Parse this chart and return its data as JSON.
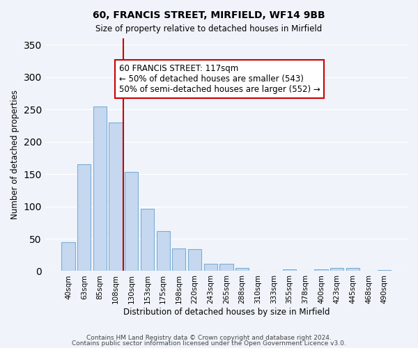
{
  "title": "60, FRANCIS STREET, MIRFIELD, WF14 9BB",
  "subtitle": "Size of property relative to detached houses in Mirfield",
  "xlabel": "Distribution of detached houses by size in Mirfield",
  "ylabel": "Number of detached properties",
  "categories": [
    "40sqm",
    "63sqm",
    "85sqm",
    "108sqm",
    "130sqm",
    "153sqm",
    "175sqm",
    "198sqm",
    "220sqm",
    "243sqm",
    "265sqm",
    "288sqm",
    "310sqm",
    "333sqm",
    "355sqm",
    "378sqm",
    "400sqm",
    "423sqm",
    "445sqm",
    "468sqm",
    "490sqm"
  ],
  "values": [
    45,
    165,
    255,
    230,
    153,
    96,
    62,
    35,
    34,
    11,
    11,
    5,
    0,
    0,
    3,
    0,
    3,
    5,
    5,
    0,
    2
  ],
  "bar_color": "#c5d8f0",
  "bar_edge_color": "#7aadd4",
  "vline_x": 4,
  "vline_color": "#cc0000",
  "annotation_text": "60 FRANCIS STREET: 117sqm\n← 50% of detached houses are smaller (543)\n50% of semi-detached houses are larger (552) →",
  "annotation_box_color": "#ffffff",
  "annotation_box_edge": "#cc0000",
  "ylim": [
    0,
    360
  ],
  "yticks": [
    0,
    50,
    100,
    150,
    200,
    250,
    300,
    350
  ],
  "footer1": "Contains HM Land Registry data © Crown copyright and database right 2024.",
  "footer2": "Contains public sector information licensed under the Open Government Licence v3.0.",
  "background_color": "#f0f4fa",
  "grid_color": "#ffffff"
}
